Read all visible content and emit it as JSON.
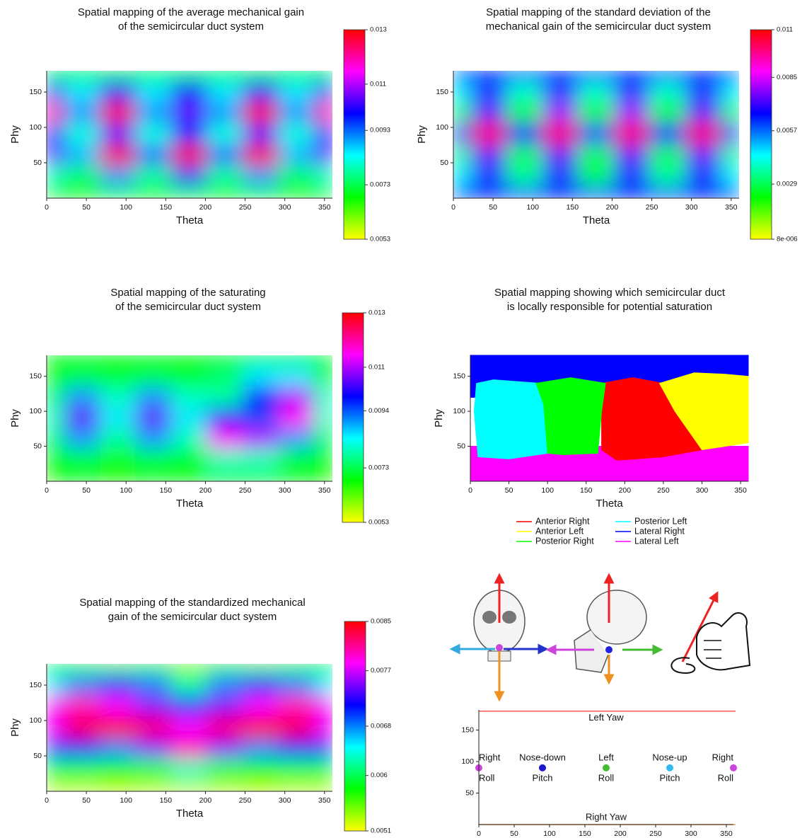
{
  "chart_data": [
    {
      "type": "heatmap",
      "title": [
        "Spatial mapping of the average mechanical gain",
        "of the semicircular duct system"
      ],
      "x_label": "Theta",
      "y_label": "Phy",
      "x": [
        0,
        45,
        90,
        135,
        180,
        225,
        270,
        315,
        360
      ],
      "y": [
        180,
        150,
        120,
        90,
        60,
        30,
        0
      ],
      "values": [
        [
          0.0068,
          0.0068,
          0.0068,
          0.0068,
          0.0068,
          0.0068,
          0.0068,
          0.0068,
          0.0068
        ],
        [
          0.0095,
          0.0085,
          0.01,
          0.0085,
          0.0098,
          0.0085,
          0.01,
          0.0085,
          0.0095
        ],
        [
          0.012,
          0.009,
          0.0125,
          0.009,
          0.0105,
          0.009,
          0.0125,
          0.009,
          0.012
        ],
        [
          0.01,
          0.0082,
          0.0105,
          0.0082,
          0.0098,
          0.0082,
          0.0105,
          0.0082,
          0.01
        ],
        [
          0.0105,
          0.0088,
          0.0125,
          0.0092,
          0.0125,
          0.0092,
          0.0125,
          0.0088,
          0.0105
        ],
        [
          0.008,
          0.0075,
          0.009,
          0.0078,
          0.0095,
          0.0078,
          0.009,
          0.0075,
          0.008
        ],
        [
          0.0066,
          0.0066,
          0.0066,
          0.0066,
          0.0066,
          0.0066,
          0.0066,
          0.0066,
          0.0066
        ]
      ],
      "xlim": [
        0,
        360
      ],
      "ylim": [
        0,
        180
      ],
      "xticks": [
        0,
        50,
        100,
        150,
        200,
        250,
        300,
        350
      ],
      "yticks": [
        50,
        100,
        150
      ],
      "colormap": [
        "#ffff00",
        "#00ff00",
        "#00ffff",
        "#0000ff",
        "#ff00ff",
        "#ff0000"
      ],
      "colorbar_lim": [
        0.0053,
        0.013
      ],
      "colorbar_ticks": [
        0.0053,
        0.0073,
        0.0093,
        0.011,
        0.013
      ]
    },
    {
      "type": "heatmap",
      "title": [
        "Spatial mapping of the standard deviation of the",
        "mechanical gain of the semicircular duct system"
      ],
      "x_label": "Theta",
      "y_label": "Phy",
      "x": [
        0,
        45,
        90,
        135,
        180,
        225,
        270,
        315,
        360
      ],
      "y": [
        180,
        150,
        120,
        90,
        60,
        30,
        0
      ],
      "values": [
        [
          0.0065,
          0.0065,
          0.0065,
          0.0065,
          0.0065,
          0.0065,
          0.0065,
          0.0065,
          0.0065
        ],
        [
          0.0045,
          0.006,
          0.004,
          0.006,
          0.004,
          0.006,
          0.004,
          0.006,
          0.0045
        ],
        [
          0.003,
          0.0075,
          0.0025,
          0.008,
          0.0025,
          0.008,
          0.0025,
          0.0075,
          0.003
        ],
        [
          0.006,
          0.01,
          0.0065,
          0.01,
          0.006,
          0.01,
          0.0065,
          0.01,
          0.006
        ],
        [
          0.0035,
          0.0075,
          0.003,
          0.0075,
          0.003,
          0.0075,
          0.003,
          0.0075,
          0.0035
        ],
        [
          0.0045,
          0.006,
          0.0035,
          0.006,
          0.003,
          0.006,
          0.0035,
          0.006,
          0.0045
        ],
        [
          0.0065,
          0.0065,
          0.0065,
          0.0065,
          0.0065,
          0.0065,
          0.0065,
          0.0065,
          0.0065
        ]
      ],
      "xlim": [
        0,
        360
      ],
      "ylim": [
        0,
        180
      ],
      "xticks": [
        0,
        50,
        100,
        150,
        200,
        250,
        300,
        350
      ],
      "yticks": [
        50,
        100,
        150
      ],
      "colormap": [
        "#ffff00",
        "#00ff00",
        "#00ffff",
        "#0000ff",
        "#ff00ff",
        "#ff0000"
      ],
      "colorbar_lim": [
        8e-06,
        0.011
      ],
      "colorbar_ticks": [
        {
          "value": 8e-06,
          "label": "8e-006"
        },
        0.0029,
        0.0057,
        0.0085,
        0.011
      ]
    },
    {
      "type": "heatmap",
      "title": [
        "Spatial mapping of the saturating",
        "of the semicircular duct system"
      ],
      "x_label": "Theta",
      "y_label": "Phy",
      "x": [
        0,
        45,
        90,
        135,
        180,
        225,
        270,
        315,
        360
      ],
      "y": [
        180,
        150,
        120,
        90,
        60,
        30,
        0
      ],
      "values": [
        [
          0.007,
          0.007,
          0.007,
          0.007,
          0.007,
          0.007,
          0.007,
          0.007,
          0.007
        ],
        [
          0.0068,
          0.0072,
          0.007,
          0.0072,
          0.007,
          0.0075,
          0.0085,
          0.0085,
          0.007
        ],
        [
          0.0075,
          0.009,
          0.008,
          0.009,
          0.008,
          0.0078,
          0.01,
          0.011,
          0.008
        ],
        [
          0.008,
          0.0105,
          0.0085,
          0.0105,
          0.0085,
          0.01,
          0.0095,
          0.0115,
          0.008
        ],
        [
          0.0075,
          0.009,
          0.0078,
          0.009,
          0.008,
          0.0115,
          0.011,
          0.009,
          0.0075
        ],
        [
          0.0068,
          0.0072,
          0.0068,
          0.0072,
          0.007,
          0.008,
          0.008,
          0.0072,
          0.0068
        ],
        [
          0.0068,
          0.0068,
          0.0068,
          0.0068,
          0.0068,
          0.0068,
          0.0068,
          0.0068,
          0.0068
        ]
      ],
      "xlim": [
        0,
        360
      ],
      "ylim": [
        0,
        180
      ],
      "xticks": [
        0,
        50,
        100,
        150,
        200,
        250,
        300,
        350
      ],
      "yticks": [
        50,
        100,
        150
      ],
      "colormap": [
        "#ffff00",
        "#00ff00",
        "#00ffff",
        "#0000ff",
        "#ff00ff",
        "#ff0000"
      ],
      "colorbar_lim": [
        0.0053,
        0.013
      ],
      "colorbar_ticks": [
        0.0053,
        0.0073,
        0.0094,
        0.011,
        0.013
      ]
    },
    {
      "type": "region_map",
      "title": [
        "Spatial mapping showing which semicircular duct",
        "is locally responsible for potential saturation"
      ],
      "x_label": "Theta",
      "y_label": "Phy",
      "regions": [
        {
          "name": "Anterior Right",
          "color": "#ff0000",
          "theta": [
            170,
            210,
            250,
            270,
            300,
            250,
            190,
            170,
            170
          ],
          "phi": [
            140,
            148,
            140,
            100,
            45,
            35,
            30,
            45,
            100
          ]
        },
        {
          "name": "Anterior Left",
          "color": "#ffff00",
          "theta": [
            245,
            290,
            330,
            360,
            360,
            300,
            265
          ],
          "phi": [
            140,
            155,
            153,
            150,
            55,
            45,
            100
          ]
        },
        {
          "name": "Posterior Right",
          "color": "#00ff00",
          "theta": [
            85,
            130,
            175,
            170,
            165,
            120,
            100,
            95
          ],
          "phi": [
            140,
            148,
            140,
            100,
            40,
            38,
            40,
            110
          ]
        },
        {
          "name": "Posterior Left",
          "color": "#00ffff",
          "theta": [
            8,
            30,
            90,
            95,
            100,
            50,
            10,
            5
          ],
          "phi": [
            140,
            145,
            140,
            120,
            40,
            32,
            35,
            100
          ]
        },
        {
          "name": "Lateral Right",
          "color": "#0000ff",
          "theta": [
            0,
            360,
            360,
            0
          ],
          "phi": [
            180,
            180,
            120,
            120
          ]
        },
        {
          "name": "Lateral Left",
          "color": "#ff00ff",
          "theta": [
            0,
            360,
            360,
            0
          ],
          "phi": [
            0,
            0,
            50,
            50
          ]
        }
      ],
      "xlim": [
        0,
        360
      ],
      "ylim": [
        0,
        180
      ],
      "xticks": [
        0,
        50,
        100,
        150,
        200,
        250,
        300,
        350
      ],
      "yticks": [
        50,
        100,
        150
      ]
    },
    {
      "type": "heatmap",
      "title": [
        "Spatial mapping of the standardized mechanical",
        "gain of the semicircular duct system"
      ],
      "x_label": "Theta",
      "y_label": "Phy",
      "x": [
        0,
        45,
        90,
        135,
        180,
        225,
        270,
        315,
        360
      ],
      "y": [
        180,
        150,
        120,
        90,
        60,
        30,
        0
      ],
      "values": [
        [
          0.0057,
          0.0056,
          0.0055,
          0.0056,
          0.0054,
          0.0056,
          0.0055,
          0.0056,
          0.0057
        ],
        [
          0.0065,
          0.0068,
          0.007,
          0.0068,
          0.0062,
          0.0068,
          0.007,
          0.0068,
          0.0065
        ],
        [
          0.0078,
          0.008,
          0.0078,
          0.0075,
          0.007,
          0.0075,
          0.0078,
          0.008,
          0.0078
        ],
        [
          0.0078,
          0.0083,
          0.0084,
          0.0082,
          0.0078,
          0.0082,
          0.0084,
          0.0083,
          0.0078
        ],
        [
          0.007,
          0.0072,
          0.0068,
          0.0075,
          0.008,
          0.0075,
          0.0068,
          0.0072,
          0.007
        ],
        [
          0.006,
          0.006,
          0.0058,
          0.006,
          0.0063,
          0.006,
          0.0058,
          0.006,
          0.006
        ],
        [
          0.0053,
          0.0053,
          0.0053,
          0.0053,
          0.0053,
          0.0053,
          0.0053,
          0.0053,
          0.0053
        ]
      ],
      "xlim": [
        0,
        360
      ],
      "ylim": [
        0,
        180
      ],
      "xticks": [
        0,
        50,
        100,
        150,
        200,
        250,
        300,
        350
      ],
      "yticks": [
        50,
        100,
        150
      ],
      "colormap": [
        "#ffff00",
        "#00ff00",
        "#00ffff",
        "#0000ff",
        "#ff00ff",
        "#ff0000"
      ],
      "colorbar_lim": [
        0.0051,
        0.0085
      ],
      "colorbar_ticks": [
        0.0051,
        0.006,
        0.0068,
        0.0077,
        0.0085
      ]
    },
    {
      "type": "scatter",
      "points": [
        {
          "label": [
            "Right",
            "Roll"
          ],
          "color": "#cc44dd",
          "x": 0,
          "y": 90
        },
        {
          "label": [
            "Nose-down",
            "Pitch"
          ],
          "color": "#1a1acc",
          "x": 90,
          "y": 90
        },
        {
          "label": [
            "Left",
            "Roll"
          ],
          "color": "#44bb33",
          "x": 180,
          "y": 90
        },
        {
          "label": [
            "Nose-up",
            "Pitch"
          ],
          "color": "#33bbee",
          "x": 270,
          "y": 90
        },
        {
          "label": [
            "Right",
            "Roll"
          ],
          "color": "#cc44dd",
          "x": 360,
          "y": 90
        }
      ],
      "lines": [
        {
          "label": "Left Yaw",
          "color": "#ff5555",
          "y": 180
        },
        {
          "label": "Right Yaw",
          "color": "#f0a050",
          "y": 0
        }
      ],
      "xlim": [
        0,
        360
      ],
      "ylim": [
        0,
        182
      ],
      "xticks": [
        0,
        50,
        100,
        150,
        200,
        250,
        300,
        350
      ],
      "yticks": [
        50,
        100,
        150
      ]
    }
  ]
}
